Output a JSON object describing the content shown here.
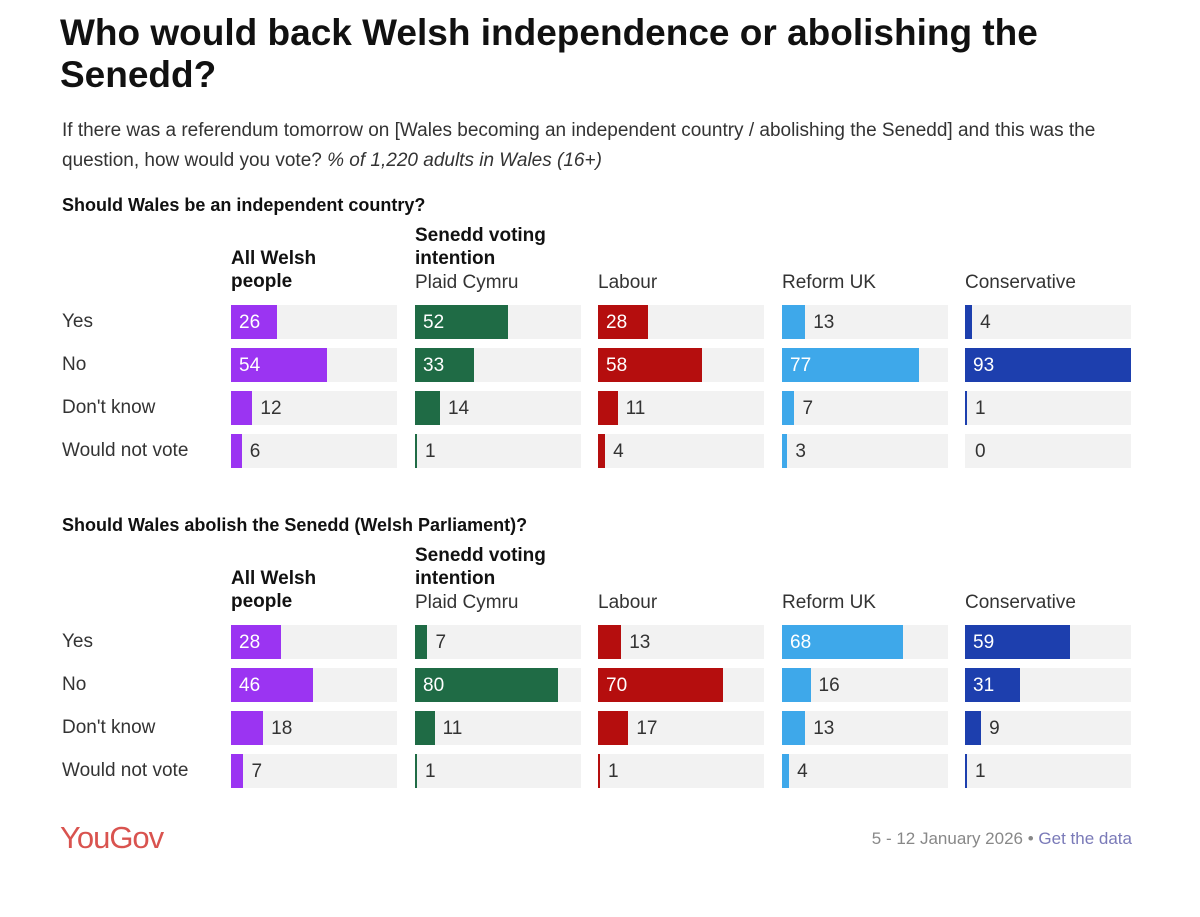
{
  "title": "Who would back Welsh independence or abolishing the Senedd?",
  "subtitle_main": "If there was a referendum tomorrow on [Wales becoming an independent country / abolishing the Senedd] and this was the question, how would you vote?",
  "subtitle_base": "% of 1,220 adults in Wales (16+)",
  "footer": {
    "logo": "YouGov",
    "dates": "5 - 12 January 2026",
    "separator": "•",
    "link": "Get the data"
  },
  "chart_data": {
    "type": "bar",
    "orientation": "horizontal",
    "groups": {
      "all": "All Welsh people",
      "voting": "Senedd voting intention"
    },
    "columns": [
      "All Welsh people",
      "Plaid Cymru",
      "Labour",
      "Reform UK",
      "Conservative"
    ],
    "colors": [
      "#9b34f2",
      "#1f6b45",
      "#b50e0e",
      "#3ea8ea",
      "#1d3fae"
    ],
    "categories": [
      "Yes",
      "No",
      "Don't know",
      "Would not vote"
    ],
    "panels": [
      {
        "title": "Should Wales be an independent country?",
        "series": [
          {
            "name": "All Welsh people",
            "values": [
              26,
              54,
              12,
              6
            ]
          },
          {
            "name": "Plaid Cymru",
            "values": [
              52,
              33,
              14,
              1
            ]
          },
          {
            "name": "Labour",
            "values": [
              28,
              58,
              11,
              4
            ]
          },
          {
            "name": "Reform UK",
            "values": [
              13,
              77,
              7,
              3
            ]
          },
          {
            "name": "Conservative",
            "values": [
              4,
              93,
              1,
              0
            ]
          }
        ]
      },
      {
        "title": "Should Wales abolish the Senedd (Welsh Parliament)?",
        "series": [
          {
            "name": "All Welsh people",
            "values": [
              28,
              46,
              18,
              7
            ]
          },
          {
            "name": "Plaid Cymru",
            "values": [
              7,
              80,
              11,
              1
            ]
          },
          {
            "name": "Labour",
            "values": [
              13,
              70,
              17,
              1
            ]
          },
          {
            "name": "Reform UK",
            "values": [
              68,
              16,
              13,
              4
            ]
          },
          {
            "name": "Conservative",
            "values": [
              59,
              31,
              9,
              1
            ]
          }
        ]
      }
    ]
  }
}
